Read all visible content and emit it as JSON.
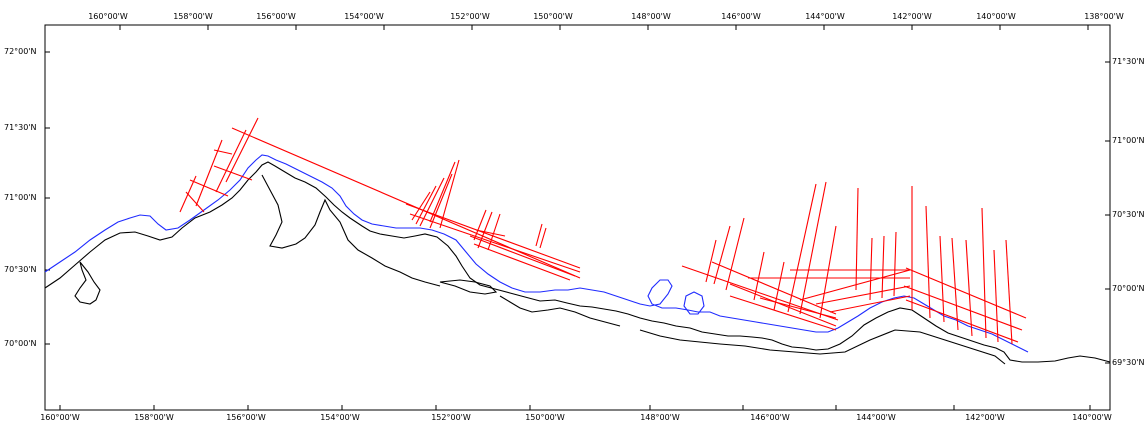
{
  "map": {
    "colors": {
      "coastline": "#000000",
      "contour": "#1f2bff",
      "survey_lines": "#ff0000",
      "background": "#ffffff"
    },
    "top_axis_labels": [
      "160°00'W",
      "158°00'W",
      "156°00'W",
      "154°00'W",
      "152°00'W",
      "150°00'W",
      "148°00'W",
      "146°00'W",
      "144°00'W",
      "142°00'W",
      "140°00'W",
      "138°00'W"
    ],
    "bottom_axis_labels": [
      "160°00'W",
      "158°00'W",
      "156°00'W",
      "154°00'W",
      "152°00'W",
      "150°00'W",
      "148°00'W",
      "146°00'W",
      "144°00'W",
      "142°00'W",
      "140°00'W"
    ],
    "left_axis_labels": [
      "72°00'N",
      "71°30'N",
      "71°00'N",
      "70°30'N",
      "70°00'N"
    ],
    "right_axis_labels": [
      "71°30'N",
      "71°00'N",
      "70°30'N",
      "70°00'N",
      "69°30'N"
    ]
  }
}
